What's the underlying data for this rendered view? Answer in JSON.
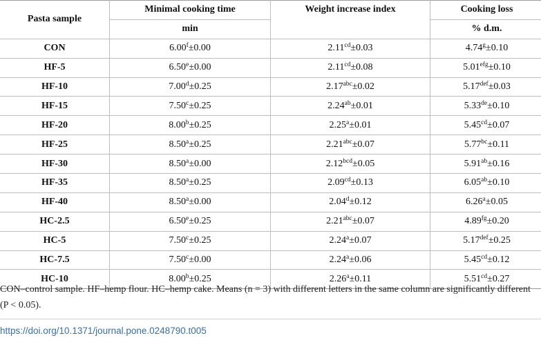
{
  "table": {
    "headers": {
      "pasta_sample": "Pasta sample",
      "minimal_cooking_time": "Minimal cooking time",
      "weight_increase_index": "Weight increase index",
      "cooking_loss": "Cooking loss",
      "unit_min": "min",
      "unit_dm": "% d.m."
    },
    "rows": [
      {
        "sample": "CON",
        "mct": {
          "v": "6.00",
          "s": "f",
          "e": "±0.00"
        },
        "wii": {
          "v": "2.11",
          "s": "cd",
          "e": "±0.03"
        },
        "cl": {
          "v": "4.74",
          "s": "g",
          "e": "±0.10"
        }
      },
      {
        "sample": "HF-5",
        "mct": {
          "v": "6.50",
          "s": "e",
          "e": "±0.00"
        },
        "wii": {
          "v": "2.11",
          "s": "cd",
          "e": "±0.08"
        },
        "cl": {
          "v": "5.01",
          "s": "efg",
          "e": "±0.10"
        }
      },
      {
        "sample": "HF-10",
        "mct": {
          "v": "7.00",
          "s": "d",
          "e": "±0.25"
        },
        "wii": {
          "v": "2.17",
          "s": "abc",
          "e": "±0.02"
        },
        "cl": {
          "v": "5.17",
          "s": "def",
          "e": "±0.03"
        }
      },
      {
        "sample": "HF-15",
        "mct": {
          "v": "7.50",
          "s": "c",
          "e": "±0.25"
        },
        "wii": {
          "v": "2.24",
          "s": "ab",
          "e": "±0.01"
        },
        "cl": {
          "v": "5.33",
          "s": "de",
          "e": "±0.10"
        }
      },
      {
        "sample": "HF-20",
        "mct": {
          "v": "8.00",
          "s": "b",
          "e": "±0.25"
        },
        "wii": {
          "v": "2.25",
          "s": "a",
          "e": "±0.01"
        },
        "cl": {
          "v": "5.45",
          "s": "cd",
          "e": "±0.07"
        }
      },
      {
        "sample": "HF-25",
        "mct": {
          "v": "8.50",
          "s": "a",
          "e": "±0.25"
        },
        "wii": {
          "v": "2.21",
          "s": "abc",
          "e": "±0.07"
        },
        "cl": {
          "v": "5.77",
          "s": "bc",
          "e": "±0.11"
        }
      },
      {
        "sample": "HF-30",
        "mct": {
          "v": "8.50",
          "s": "a",
          "e": "±0.00"
        },
        "wii": {
          "v": "2.12",
          "s": "bcd",
          "e": "±0.05"
        },
        "cl": {
          "v": "5.91",
          "s": "ab",
          "e": "±0.16"
        }
      },
      {
        "sample": "HF-35",
        "mct": {
          "v": "8.50",
          "s": "a",
          "e": "±0.25"
        },
        "wii": {
          "v": "2.09",
          "s": "cd",
          "e": "±0.13"
        },
        "cl": {
          "v": "6.05",
          "s": "ab",
          "e": "±0.10"
        }
      },
      {
        "sample": "HF-40",
        "mct": {
          "v": "8.50",
          "s": "a",
          "e": "±0.00"
        },
        "wii": {
          "v": "2.04",
          "s": "d",
          "e": "±0.12"
        },
        "cl": {
          "v": "6.26",
          "s": "a",
          "e": "±0.05"
        }
      },
      {
        "sample": "HC-2.5",
        "mct": {
          "v": "6.50",
          "s": "e",
          "e": "±0.25"
        },
        "wii": {
          "v": "2.21",
          "s": "abc",
          "e": "±0.07"
        },
        "cl": {
          "v": "4.89",
          "s": "fg",
          "e": "±0.20"
        }
      },
      {
        "sample": "HC-5",
        "mct": {
          "v": "7.50",
          "s": "c",
          "e": "±0.25"
        },
        "wii": {
          "v": "2.24",
          "s": "a",
          "e": "±0.07"
        },
        "cl": {
          "v": "5.17",
          "s": "def",
          "e": "±0.25"
        }
      },
      {
        "sample": "HC-7.5",
        "mct": {
          "v": "7.50",
          "s": "c",
          "e": "±0.00"
        },
        "wii": {
          "v": "2.24",
          "s": "a",
          "e": "±0.06"
        },
        "cl": {
          "v": "5.45",
          "s": "cd",
          "e": "±0.12"
        }
      },
      {
        "sample": "HC-10",
        "mct": {
          "v": "8.00",
          "s": "b",
          "e": "±0.25"
        },
        "wii": {
          "v": "2.26",
          "s": "a",
          "e": "±0.11"
        },
        "cl": {
          "v": "5.51",
          "s": "cd",
          "e": "±0.27"
        }
      }
    ]
  },
  "footnote": "CON–control sample. HF–hemp flour. HC–hemp cake. Means (n = 3) with different letters in the same column are significantly different (P < 0.05).",
  "doi_link": "https://doi.org/10.1371/journal.pone.0248790.t005",
  "colors": {
    "link": "#3a6ea5",
    "rule": "#bdbdbd"
  }
}
